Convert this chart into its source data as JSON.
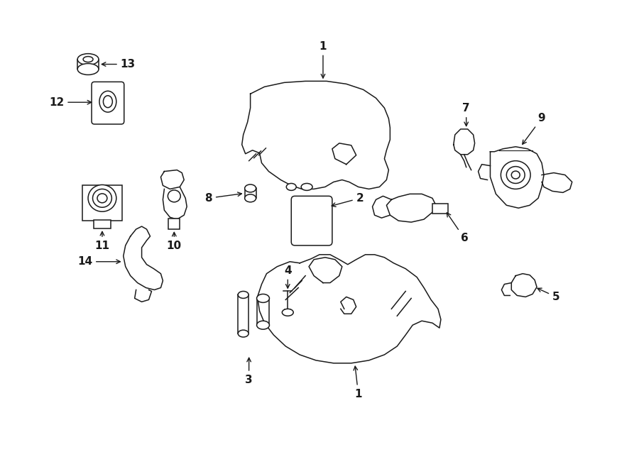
{
  "bg_color": "#ffffff",
  "line_color": "#1a1a1a",
  "fig_width": 9.0,
  "fig_height": 6.61,
  "dpi": 100,
  "lw": 1.1,
  "fs": 11
}
